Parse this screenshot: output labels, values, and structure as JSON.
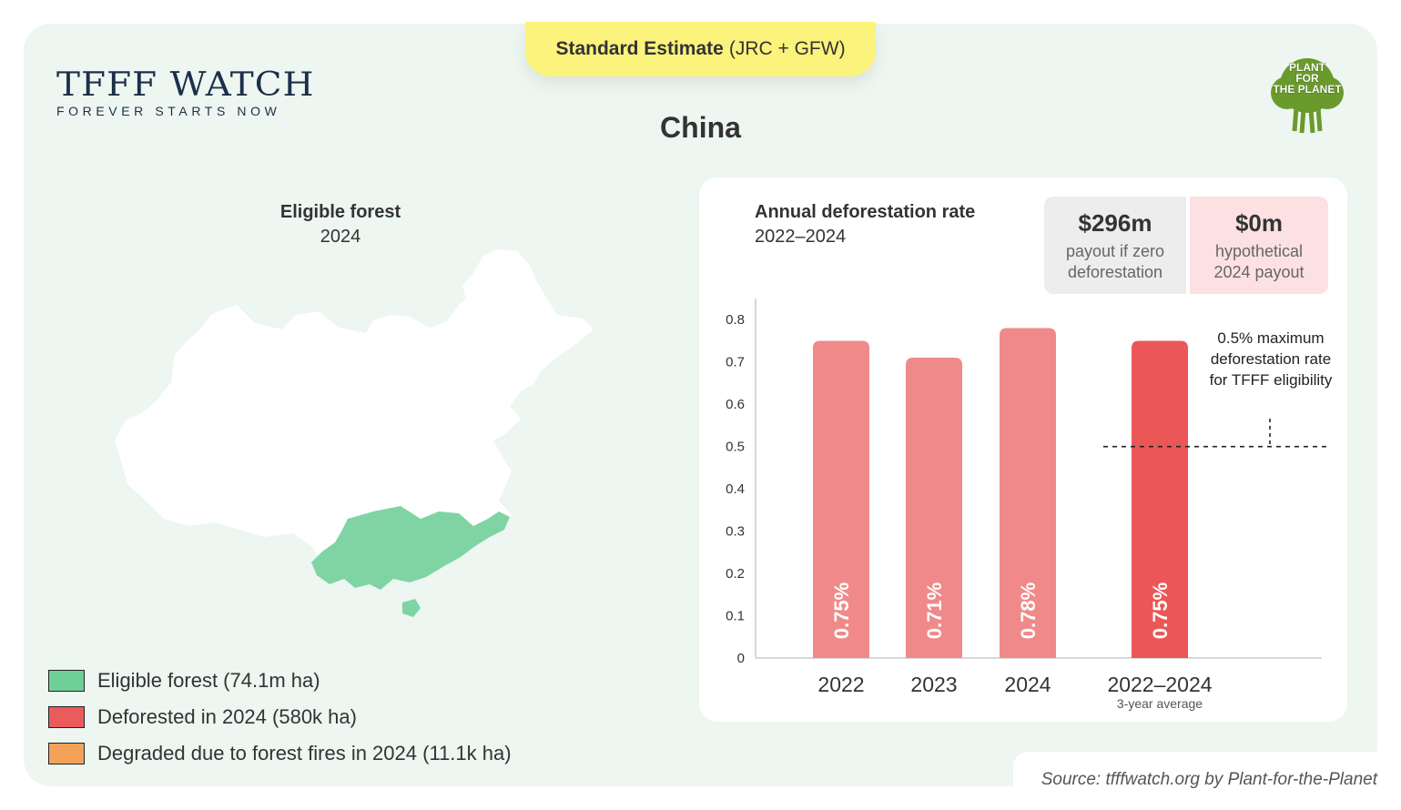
{
  "header": {
    "estimate_bold": "Standard Estimate",
    "estimate_rest": "(JRC + GFW)",
    "logo_title": "TFFF WATCH",
    "logo_subtitle": "FOREVER STARTS NOW",
    "country": "China",
    "partner_logo_lines": [
      "PLANT",
      "FOR",
      "THE PLANET"
    ]
  },
  "map": {
    "title": "Eligible forest",
    "subtitle": "2024",
    "colors": {
      "land": "#ffffff",
      "forest": "#80d4a4"
    }
  },
  "legend": [
    {
      "label": "Eligible forest (74.1m ha)",
      "color": "#6fcf97"
    },
    {
      "label": "Deforested in 2024 (580k ha)",
      "color": "#ec5b5b"
    },
    {
      "label": "Degraded due to forest fires in 2024 (11.1k ha)",
      "color": "#f4a259"
    }
  ],
  "stats": {
    "payout_value": "$296m",
    "payout_label": "payout if zero deforestation",
    "hypo_value": "$0m",
    "hypo_label": "hypothetical 2024 payout"
  },
  "chart_data": {
    "type": "bar",
    "title": "Annual deforestation rate",
    "subtitle": "2022–2024",
    "categories": [
      "2022",
      "2023",
      "2024",
      "2022–2024"
    ],
    "category_sublabels": [
      "",
      "",
      "",
      "3-year average"
    ],
    "values": [
      0.75,
      0.71,
      0.78,
      0.75
    ],
    "value_labels": [
      "0.75%",
      "0.71%",
      "0.78%",
      "0.75%"
    ],
    "colors": [
      "#f08a8a",
      "#f08a8a",
      "#f08a8a",
      "#eb5757"
    ],
    "ylim": [
      0,
      0.85
    ],
    "yticks": [
      0,
      0.1,
      0.2,
      0.3,
      0.4,
      0.5,
      0.6,
      0.7,
      0.8
    ],
    "ytick_labels": [
      "0",
      "0.1",
      "0.2",
      "0.3",
      "0.4",
      "0.5",
      "0.6",
      "0.7",
      "0.8"
    ],
    "threshold": {
      "value": 0.5,
      "label": "0.5% maximum deforestation rate for TFFF eligibility"
    },
    "grid": false
  },
  "footer": {
    "source": "Source: tfffwatch.org by Plant-for-the-Planet"
  }
}
